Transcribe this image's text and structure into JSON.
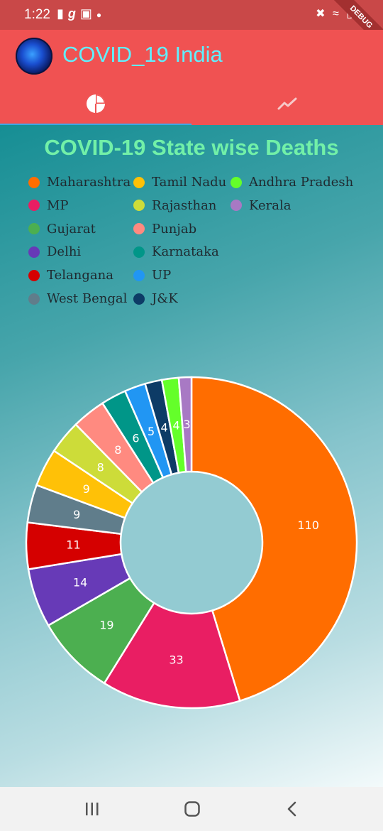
{
  "status_bar": {
    "time": "1:22",
    "left_icons": [
      "message-icon",
      "g-icon",
      "image-icon",
      "dot-icon"
    ],
    "right_icons": [
      "mute-icon",
      "wifi-icon",
      "signal-icon"
    ],
    "debug_banner": "DEBUG"
  },
  "app_bar": {
    "title": "COVID_19 India",
    "logo": "virus-icon",
    "tabs": [
      {
        "icon": "pie-chart-icon",
        "selected": true
      },
      {
        "icon": "trending-icon",
        "selected": false
      }
    ]
  },
  "colors": {
    "app_bar": "#f05252",
    "title_text": "#5ff0ff",
    "chart_title": "#72f0a8",
    "tab_indicator": "#3ba7e6"
  },
  "chart_data": {
    "type": "pie",
    "title": "COVID-19 State wise Deaths",
    "donut": true,
    "legend_position": "top",
    "slices": [
      {
        "label": "Maharashtra",
        "value": 110,
        "color": "#ff6d00"
      },
      {
        "label": "MP",
        "value": 33,
        "color": "#e91e63"
      },
      {
        "label": "Gujarat",
        "value": 19,
        "color": "#4caf50"
      },
      {
        "label": "Delhi",
        "value": 14,
        "color": "#673ab7"
      },
      {
        "label": "Telangana",
        "value": 11,
        "color": "#d50000"
      },
      {
        "label": "West Bengal",
        "value": 9,
        "color": "#607d8b"
      },
      {
        "label": "Tamil Nadu",
        "value": 9,
        "color": "#ffc107"
      },
      {
        "label": "Rajasthan",
        "value": 8,
        "color": "#cddc39"
      },
      {
        "label": "Punjab",
        "value": 8,
        "color": "#ff8a80"
      },
      {
        "label": "Karnataka",
        "value": 6,
        "color": "#009688"
      },
      {
        "label": "UP",
        "value": 5,
        "color": "#2196f3"
      },
      {
        "label": "J&K",
        "value": 4,
        "color": "#0d3b66"
      },
      {
        "label": "Andhra Pradesh",
        "value": 4,
        "color": "#64ff2a"
      },
      {
        "label": "Kerala",
        "value": 3,
        "color": "#a879c4"
      }
    ]
  },
  "nav_bar": {
    "buttons": [
      "recent-apps-icon",
      "home-icon",
      "back-icon"
    ]
  }
}
